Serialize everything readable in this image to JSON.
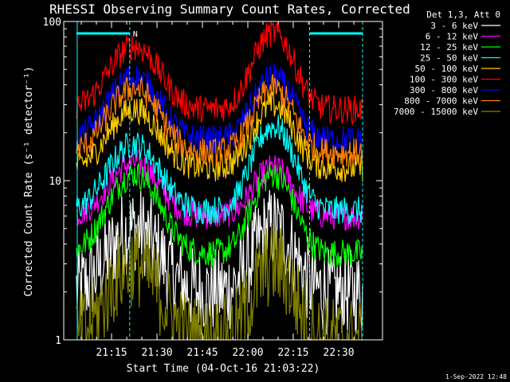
{
  "chart_data": {
    "type": "line",
    "title": "RHESSI Observing Summary Count Rates, Corrected",
    "xlabel": "Start Time (04-Oct-16 21:03:22)",
    "ylabel": "Corrected Count Rate (s⁻¹ detector⁻¹)",
    "yscale": "log",
    "ylim": [
      1,
      100
    ],
    "xlim_minutes_after_start": [
      0,
      41.6
    ],
    "x_tick_labels": [
      "21:15",
      "21:30",
      "21:45",
      "22:00",
      "22:15",
      "22:30"
    ],
    "x_tick_minutes": [
      11.6,
      26.6,
      41.6,
      56.6,
      71.6,
      86.6
    ],
    "y_tick_labels": [
      "1",
      "10",
      "100"
    ],
    "y_tick_values": [
      1,
      10,
      100
    ],
    "legend_title": "Det 1,3, Att 0",
    "legend_position": "right",
    "time_range_minutes": [
      0,
      94.5
    ],
    "night_markers_minutes": [
      17.6,
      77.0,
      94.5
    ],
    "saa_flag_label": "N",
    "series": [
      {
        "name": "3 - 6 keV",
        "color": "#ffffff",
        "peak_minutes": [
          19,
          65
        ],
        "peak_values": [
          5,
          5
        ],
        "min_values": [
          2,
          2
        ]
      },
      {
        "name": "6 - 12 keV",
        "color": "#ff00ff",
        "peak_minutes": [
          19,
          65
        ],
        "peak_values": [
          13,
          12
        ],
        "min_values": [
          6,
          5.5
        ]
      },
      {
        "name": "12 - 25 keV",
        "color": "#00ff00",
        "peak_minutes": [
          19,
          65
        ],
        "peak_values": [
          11,
          11
        ],
        "min_values": [
          3.5,
          3.5
        ]
      },
      {
        "name": "25 - 50 keV",
        "color": "#00ffff",
        "peak_minutes": [
          19,
          65
        ],
        "peak_values": [
          17,
          22
        ],
        "min_values": [
          6.5,
          6
        ]
      },
      {
        "name": "50 - 100 keV",
        "color": "#ffcc00",
        "peak_minutes": [
          19,
          65
        ],
        "peak_values": [
          28,
          30
        ],
        "min_values": [
          12,
          12
        ]
      },
      {
        "name": "100 - 300 keV",
        "color": "#ff0000",
        "peak_minutes": [
          19,
          65
        ],
        "peak_values": [
          70,
          85
        ],
        "min_values": [
          28,
          28
        ]
      },
      {
        "name": "300 - 800 keV",
        "color": "#0000ff",
        "peak_minutes": [
          19,
          65
        ],
        "peak_values": [
          45,
          45
        ],
        "min_values": [
          18,
          18
        ]
      },
      {
        "name": "800 - 7000 keV",
        "color": "#ff8000",
        "peak_minutes": [
          19,
          65
        ],
        "peak_values": [
          38,
          38
        ],
        "min_values": [
          15,
          15
        ]
      },
      {
        "name": "7000 - 15000 keV",
        "color": "#808000",
        "peak_minutes": [
          19,
          65
        ],
        "peak_values": [
          3,
          3
        ],
        "min_values": [
          1,
          1
        ]
      }
    ]
  },
  "footer": {
    "timestamp": "1-Sep-2022 12:48"
  }
}
